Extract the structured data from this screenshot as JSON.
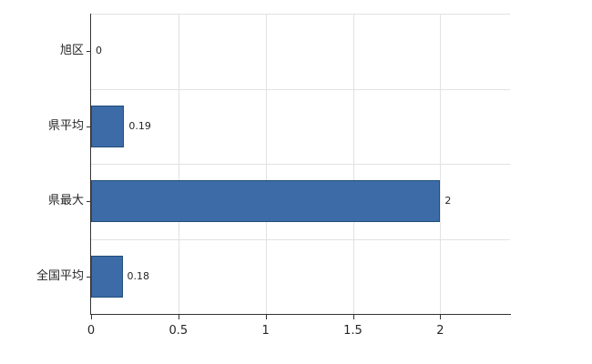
{
  "chart_data": {
    "type": "bar",
    "orientation": "horizontal",
    "title": "",
    "xlabel": "",
    "ylabel": "",
    "categories": [
      "旭区",
      "県平均",
      "県最大",
      "全国平均"
    ],
    "values": [
      0,
      0.19,
      2,
      0.18
    ],
    "value_labels": [
      "0",
      "0.19",
      "2",
      "0.18"
    ],
    "xlim": [
      0,
      2.4
    ],
    "xticks": [
      0,
      0.5,
      1,
      1.5,
      2
    ],
    "xtick_labels": [
      "0",
      "0.5",
      "1",
      "1.5",
      "2"
    ],
    "grid": true,
    "legend": false,
    "colors": {
      "bar_fill": "#3d6ba8",
      "bar_border": "#1f4e79",
      "gridline": "#e2e2e2",
      "axis": "#333333",
      "text": "#262626",
      "background": "#ffffff"
    }
  }
}
